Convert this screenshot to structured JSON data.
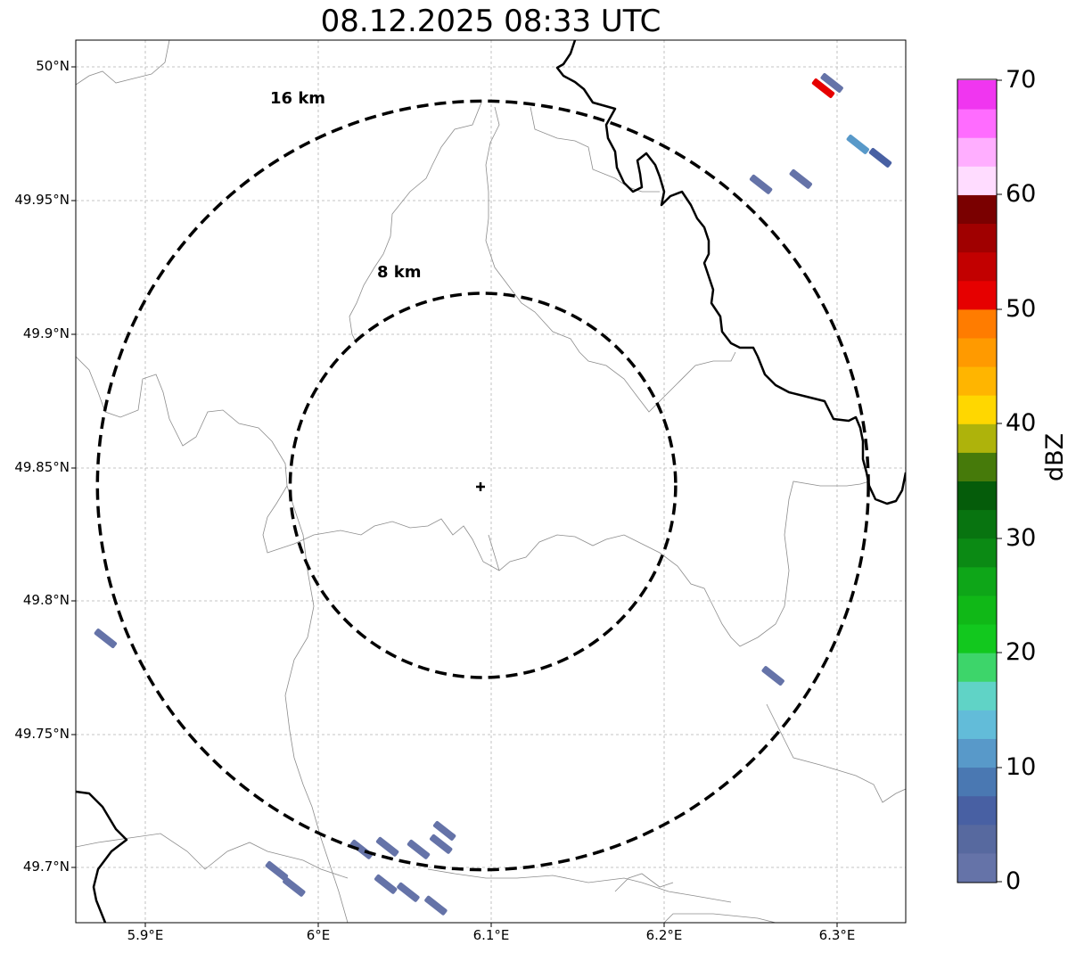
{
  "title": "08.12.2025 08:33 UTC",
  "axes": {
    "lat_ticks": [
      "50°N",
      "49.95°N",
      "49.9°N",
      "49.85°N",
      "49.8°N",
      "49.75°N",
      "49.7°N"
    ],
    "lon_ticks": [
      "5.9°E",
      "6°E",
      "6.1°E",
      "6.2°E",
      "6.3°E"
    ]
  },
  "rings": {
    "inner_label": "8 km",
    "outer_label": "16 km",
    "inner_km": 8,
    "outer_km": 16,
    "center": {
      "lon": 6.0952,
      "lat": 49.8433
    }
  },
  "colorbar": {
    "label": "dBZ",
    "ticks": [
      "0",
      "10",
      "20",
      "30",
      "40",
      "50",
      "60",
      "70"
    ],
    "range": [
      0,
      70
    ],
    "step": 2.5,
    "colors": [
      "#6573a8",
      "#57699f",
      "#4860a3",
      "#4a78b2",
      "#5899c9",
      "#62bcd9",
      "#60d3c6",
      "#3dd56a",
      "#12c81e",
      "#10b817",
      "#0ea618",
      "#0b8a14",
      "#087410",
      "#055c0a",
      "#467a0a",
      "#aeb30b",
      "#ffd700",
      "#ffb500",
      "#ff9a00",
      "#ff7c00",
      "#e60000",
      "#c20000",
      "#a00000",
      "#7a0000",
      "#ffdcff",
      "#ffaeff",
      "#ff6cff",
      "#f036f0"
    ]
  },
  "echo_color": "#6573a8",
  "chart_data": {
    "type": "map",
    "extent": {
      "lon": [
        5.86,
        6.34
      ],
      "lat": [
        49.68,
        50.01
      ]
    },
    "radar_site": {
      "lon": 6.0952,
      "lat": 49.8433
    },
    "echoes": [
      {
        "lon": 6.297,
        "lat": 49.994,
        "dbz": 2
      },
      {
        "lon": 6.292,
        "lat": 49.992,
        "dbz": 52
      },
      {
        "lon": 6.325,
        "lat": 49.966,
        "dbz": 5
      },
      {
        "lon": 6.312,
        "lat": 49.971,
        "dbz": 12
      },
      {
        "lon": 6.279,
        "lat": 49.958,
        "dbz": 2
      },
      {
        "lon": 6.256,
        "lat": 49.956,
        "dbz": 2
      },
      {
        "lon": 5.877,
        "lat": 49.786,
        "dbz": 2
      },
      {
        "lon": 6.263,
        "lat": 49.772,
        "dbz": 2
      },
      {
        "lon": 5.976,
        "lat": 49.699,
        "dbz": 2
      },
      {
        "lon": 5.986,
        "lat": 49.693,
        "dbz": 2
      },
      {
        "lon": 6.025,
        "lat": 49.707,
        "dbz": 2
      },
      {
        "lon": 6.04,
        "lat": 49.708,
        "dbz": 2
      },
      {
        "lon": 6.058,
        "lat": 49.707,
        "dbz": 2
      },
      {
        "lon": 6.073,
        "lat": 49.714,
        "dbz": 2
      },
      {
        "lon": 6.039,
        "lat": 49.694,
        "dbz": 2
      },
      {
        "lon": 6.052,
        "lat": 49.691,
        "dbz": 2
      },
      {
        "lon": 6.068,
        "lat": 49.686,
        "dbz": 2
      },
      {
        "lon": 6.071,
        "lat": 49.709,
        "dbz": 2
      }
    ]
  }
}
